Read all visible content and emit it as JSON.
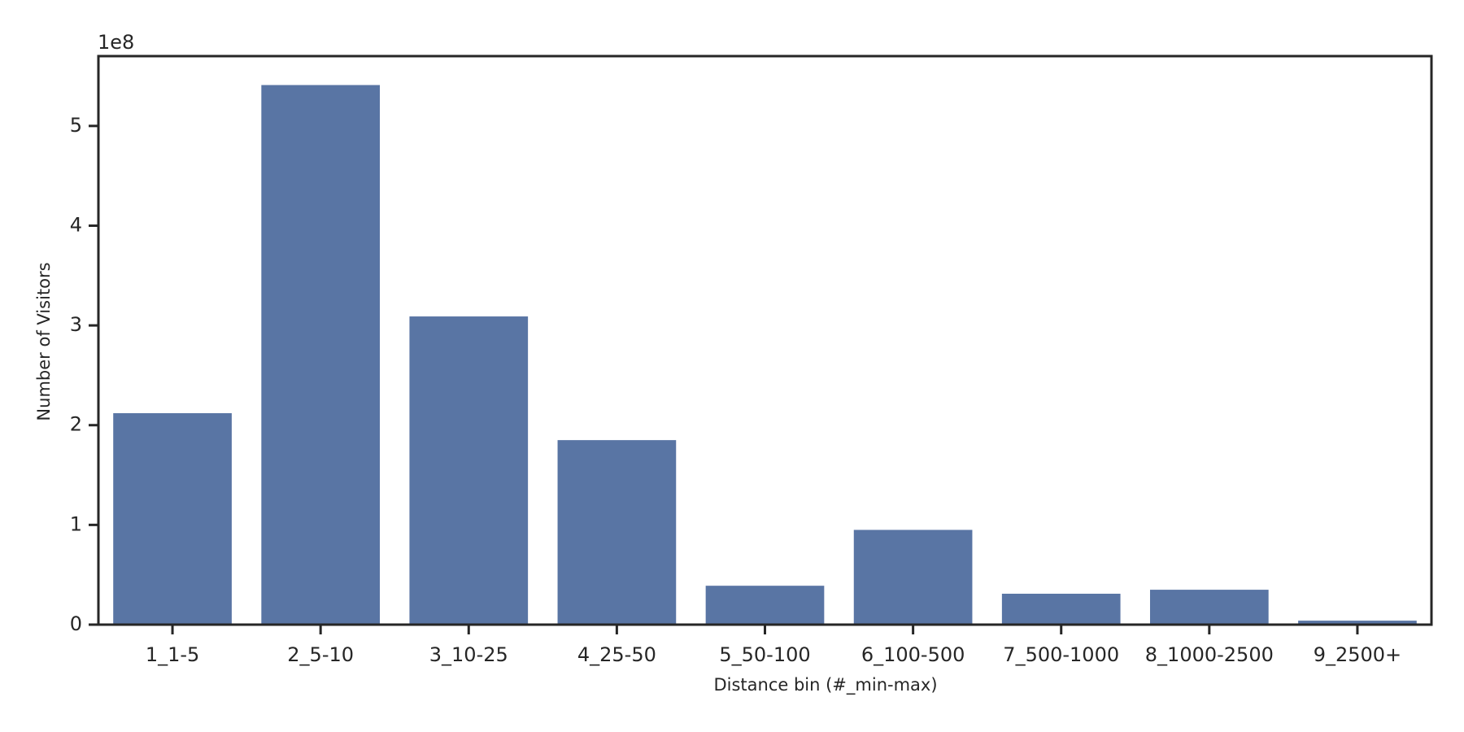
{
  "chart_data": {
    "type": "bar",
    "x_label": "Distance bin (#_min-max)",
    "y_label": "Number of Visitors",
    "y_offset_label": "1e8",
    "categories": [
      "1_1-5",
      "2_5-10",
      "3_10-25",
      "4_25-50",
      "5_50-100",
      "6_100-500",
      "7_500-1000",
      "8_1000-2500",
      "9_2500+"
    ],
    "values": [
      2.12,
      5.41,
      3.09,
      1.85,
      0.39,
      0.95,
      0.31,
      0.35,
      0.04
    ],
    "color": "#5975a4",
    "ylim": [
      0,
      5.7
    ],
    "yticks": [
      0,
      1,
      2,
      3,
      4,
      5
    ]
  }
}
